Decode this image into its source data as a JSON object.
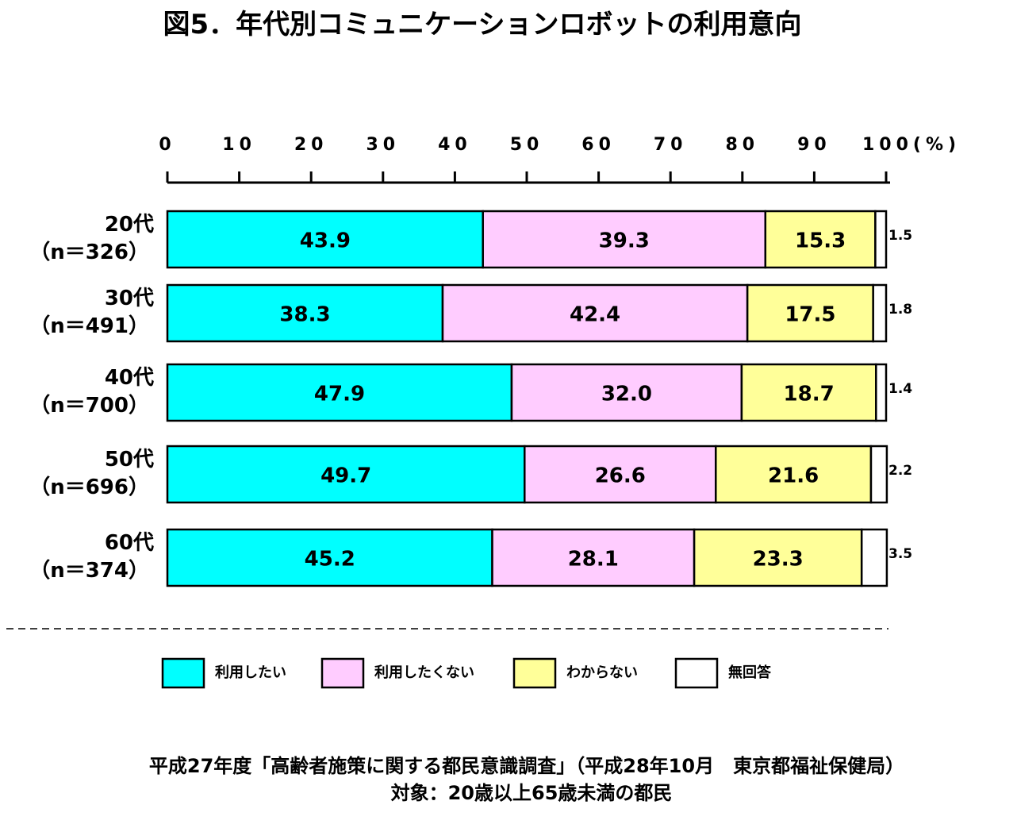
{
  "title": "図5．年代別コミュニケーションロボットの利用意向",
  "chart_data": {
    "type": "bar",
    "orientation": "horizontal-stacked-100",
    "xlim": [
      0,
      100
    ],
    "x_ticks": [
      "0",
      "10",
      "20",
      "30",
      "40",
      "50",
      "60",
      "70",
      "80",
      "90",
      "100(%)"
    ],
    "categories": [
      {
        "age": "20代",
        "n": "（n＝326）"
      },
      {
        "age": "30代",
        "n": "（n＝491）"
      },
      {
        "age": "40代",
        "n": "（n＝700）"
      },
      {
        "age": "50代",
        "n": "（n＝696）"
      },
      {
        "age": "60代",
        "n": "（n＝374）"
      }
    ],
    "series": [
      {
        "name": "利用したい",
        "color": "#00FFFF",
        "values": [
          43.9,
          38.3,
          47.9,
          49.7,
          45.2
        ]
      },
      {
        "name": "利用したくない",
        "color": "#FFCCFF",
        "values": [
          39.3,
          42.4,
          32.0,
          26.6,
          28.1
        ]
      },
      {
        "name": "わからない",
        "color": "#FFFF99",
        "values": [
          15.3,
          17.5,
          18.7,
          21.6,
          23.3
        ]
      },
      {
        "name": "無回答",
        "color": "#FFFFFF",
        "values": [
          1.5,
          1.8,
          1.4,
          2.2,
          3.5
        ]
      }
    ],
    "grid": false,
    "legend_position": "bottom"
  },
  "source": "平成27年度「高齢者施策に関する都民意識調査」（平成28年10月　東京都福祉保健局）",
  "target": "対象：20歳以上65歳未満の都民"
}
